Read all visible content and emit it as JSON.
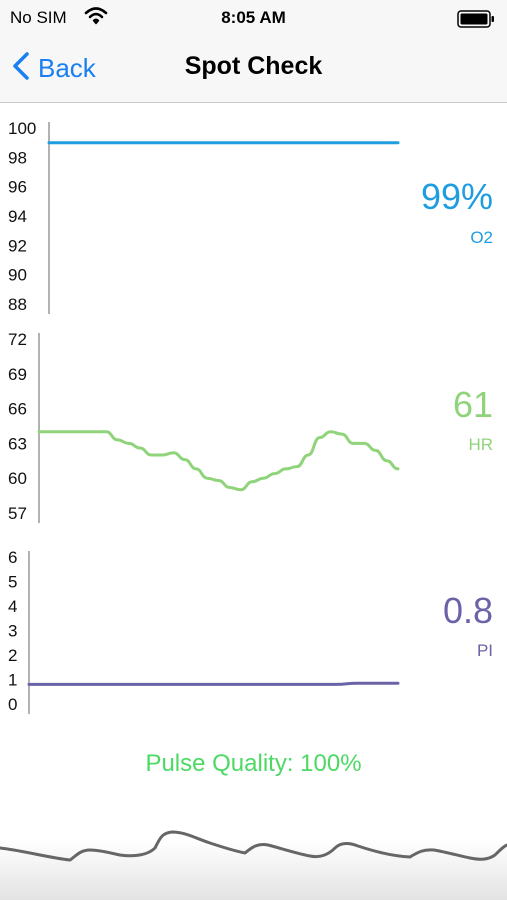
{
  "status_bar": {
    "carrier": "No SIM",
    "time": "8:05 AM"
  },
  "nav": {
    "back_label": "Back",
    "title": "Spot Check"
  },
  "colors": {
    "accent": "#1a7ff0",
    "o2": "#1e9de0",
    "hr": "#8fd47a",
    "pi": "#6b63a8",
    "pulse_quality": "#4cd964",
    "waveform": "#666666"
  },
  "readings": {
    "o2": {
      "value": "99%",
      "label": "O2"
    },
    "hr": {
      "value": "61",
      "label": "HR"
    },
    "pi": {
      "value": "0.8",
      "label": "PI"
    }
  },
  "pulse_quality": "Pulse Quality: 100%",
  "chart_data": [
    {
      "type": "line",
      "ylim": [
        88,
        100
      ],
      "yticks": [
        "100",
        "98",
        "96",
        "94",
        "92",
        "90",
        "88"
      ],
      "series": [
        {
          "values": [
            99,
            99,
            99,
            99,
            99,
            99,
            99,
            99,
            99,
            99,
            99,
            99,
            99
          ]
        }
      ]
    },
    {
      "type": "line",
      "ylim": [
        57,
        72
      ],
      "yticks": [
        "72",
        "69",
        "66",
        "63",
        "60",
        "57"
      ],
      "series": [
        {
          "values": [
            64,
            64,
            64,
            64,
            64,
            64,
            64,
            63.3,
            63,
            62.6,
            62,
            62,
            62.2,
            61.6,
            60.8,
            60,
            59.8,
            59.2,
            59,
            59.7,
            60,
            60.4,
            60.8,
            61,
            62,
            63.5,
            64,
            63.8,
            63,
            63,
            62.4,
            61.5,
            60.8
          ]
        }
      ]
    },
    {
      "type": "line",
      "ylim": [
        0,
        6
      ],
      "yticks": [
        "6",
        "5",
        "4",
        "3",
        "2",
        "1",
        "0"
      ],
      "series": [
        {
          "values": [
            0.8,
            0.8,
            0.8,
            0.8,
            0.8,
            0.8,
            0.8,
            0.8,
            0.8,
            0.8,
            0.8,
            0.8,
            0.8,
            0.8,
            0.8,
            0.8,
            0.85,
            0.85,
            0.85
          ]
        }
      ]
    }
  ]
}
